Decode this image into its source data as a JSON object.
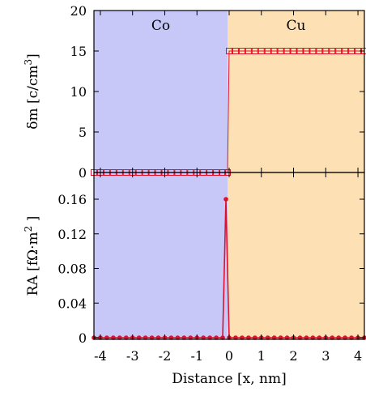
{
  "colors": {
    "co_region": "#c8c8f8",
    "cu_region": "#fde0b4",
    "series": "#e0102c",
    "axis": "#000000"
  },
  "chart_data": [
    {
      "type": "scatter",
      "panel": "top",
      "ylabel_text": "δm [c/cm",
      "ylabel_sup": "3",
      "ylabel_close": "]",
      "ylim": [
        0,
        20
      ],
      "yticks": [
        0,
        5,
        10,
        15,
        20
      ],
      "xlim": [
        -4.2,
        4.2
      ],
      "region_labels": [
        "Co",
        "Cu"
      ],
      "marker": "open-square",
      "series": [
        {
          "x": [
            -4.2,
            -4.0,
            -3.8,
            -3.6,
            -3.4,
            -3.2,
            -3.0,
            -2.8,
            -2.6,
            -2.4,
            -2.2,
            -2.0,
            -1.8,
            -1.6,
            -1.4,
            -1.2,
            -1.0,
            -0.8,
            -0.6,
            -0.4,
            -0.2,
            -0.05,
            0.0,
            0.2,
            0.4,
            0.6,
            0.8,
            1.0,
            1.2,
            1.4,
            1.6,
            1.8,
            2.0,
            2.2,
            2.4,
            2.6,
            2.8,
            3.0,
            3.2,
            3.4,
            3.6,
            3.8,
            4.0,
            4.2
          ],
          "y": [
            0,
            0,
            0,
            0,
            0,
            0,
            0,
            0,
            0,
            0,
            0,
            0,
            0,
            0,
            0,
            0,
            0,
            0,
            0,
            0,
            0,
            0,
            15,
            15,
            15,
            15,
            15,
            15,
            15,
            15,
            15,
            15,
            15,
            15,
            15,
            15,
            15,
            15,
            15,
            15,
            15,
            15,
            15,
            15
          ]
        }
      ]
    },
    {
      "type": "line",
      "panel": "bottom",
      "ylabel_text": "RA [fΩ·m",
      "ylabel_sup": "2",
      "ylabel_close": " ]",
      "xlabel": "Distance [x, nm]",
      "ylim": [
        0,
        0.18
      ],
      "yticks": [
        0,
        0.04,
        0.08,
        0.12,
        0.16
      ],
      "ytick_labels": [
        "0",
        "0.04",
        "0.08",
        "0.12",
        "0.16"
      ],
      "xlim": [
        -4.2,
        4.2
      ],
      "xticks": [
        -4,
        -3,
        -2,
        -1,
        0,
        1,
        2,
        3,
        4
      ],
      "xtick_labels": [
        "-4",
        "-3",
        "-2",
        "-1",
        "0",
        "1",
        "2",
        "3",
        "4"
      ],
      "marker": "filled-circle",
      "series": [
        {
          "x": [
            -4.2,
            -4.0,
            -3.8,
            -3.6,
            -3.4,
            -3.2,
            -3.0,
            -2.8,
            -2.6,
            -2.4,
            -2.2,
            -2.0,
            -1.8,
            -1.6,
            -1.4,
            -1.2,
            -1.0,
            -0.8,
            -0.6,
            -0.4,
            -0.2,
            -0.1,
            0.0,
            0.2,
            0.4,
            0.6,
            0.8,
            1.0,
            1.2,
            1.4,
            1.6,
            1.8,
            2.0,
            2.2,
            2.4,
            2.6,
            2.8,
            3.0,
            3.2,
            3.4,
            3.6,
            3.8,
            4.0,
            4.2
          ],
          "y": [
            0,
            0,
            0,
            0,
            0,
            0,
            0,
            0,
            0,
            0,
            0,
            0,
            0,
            0,
            0,
            0,
            0,
            0,
            0,
            0,
            0,
            0.16,
            0,
            0,
            0,
            0,
            0,
            0,
            0,
            0,
            0,
            0,
            0,
            0,
            0,
            0,
            0,
            0,
            0,
            0,
            0,
            0,
            0,
            0
          ]
        }
      ]
    }
  ]
}
